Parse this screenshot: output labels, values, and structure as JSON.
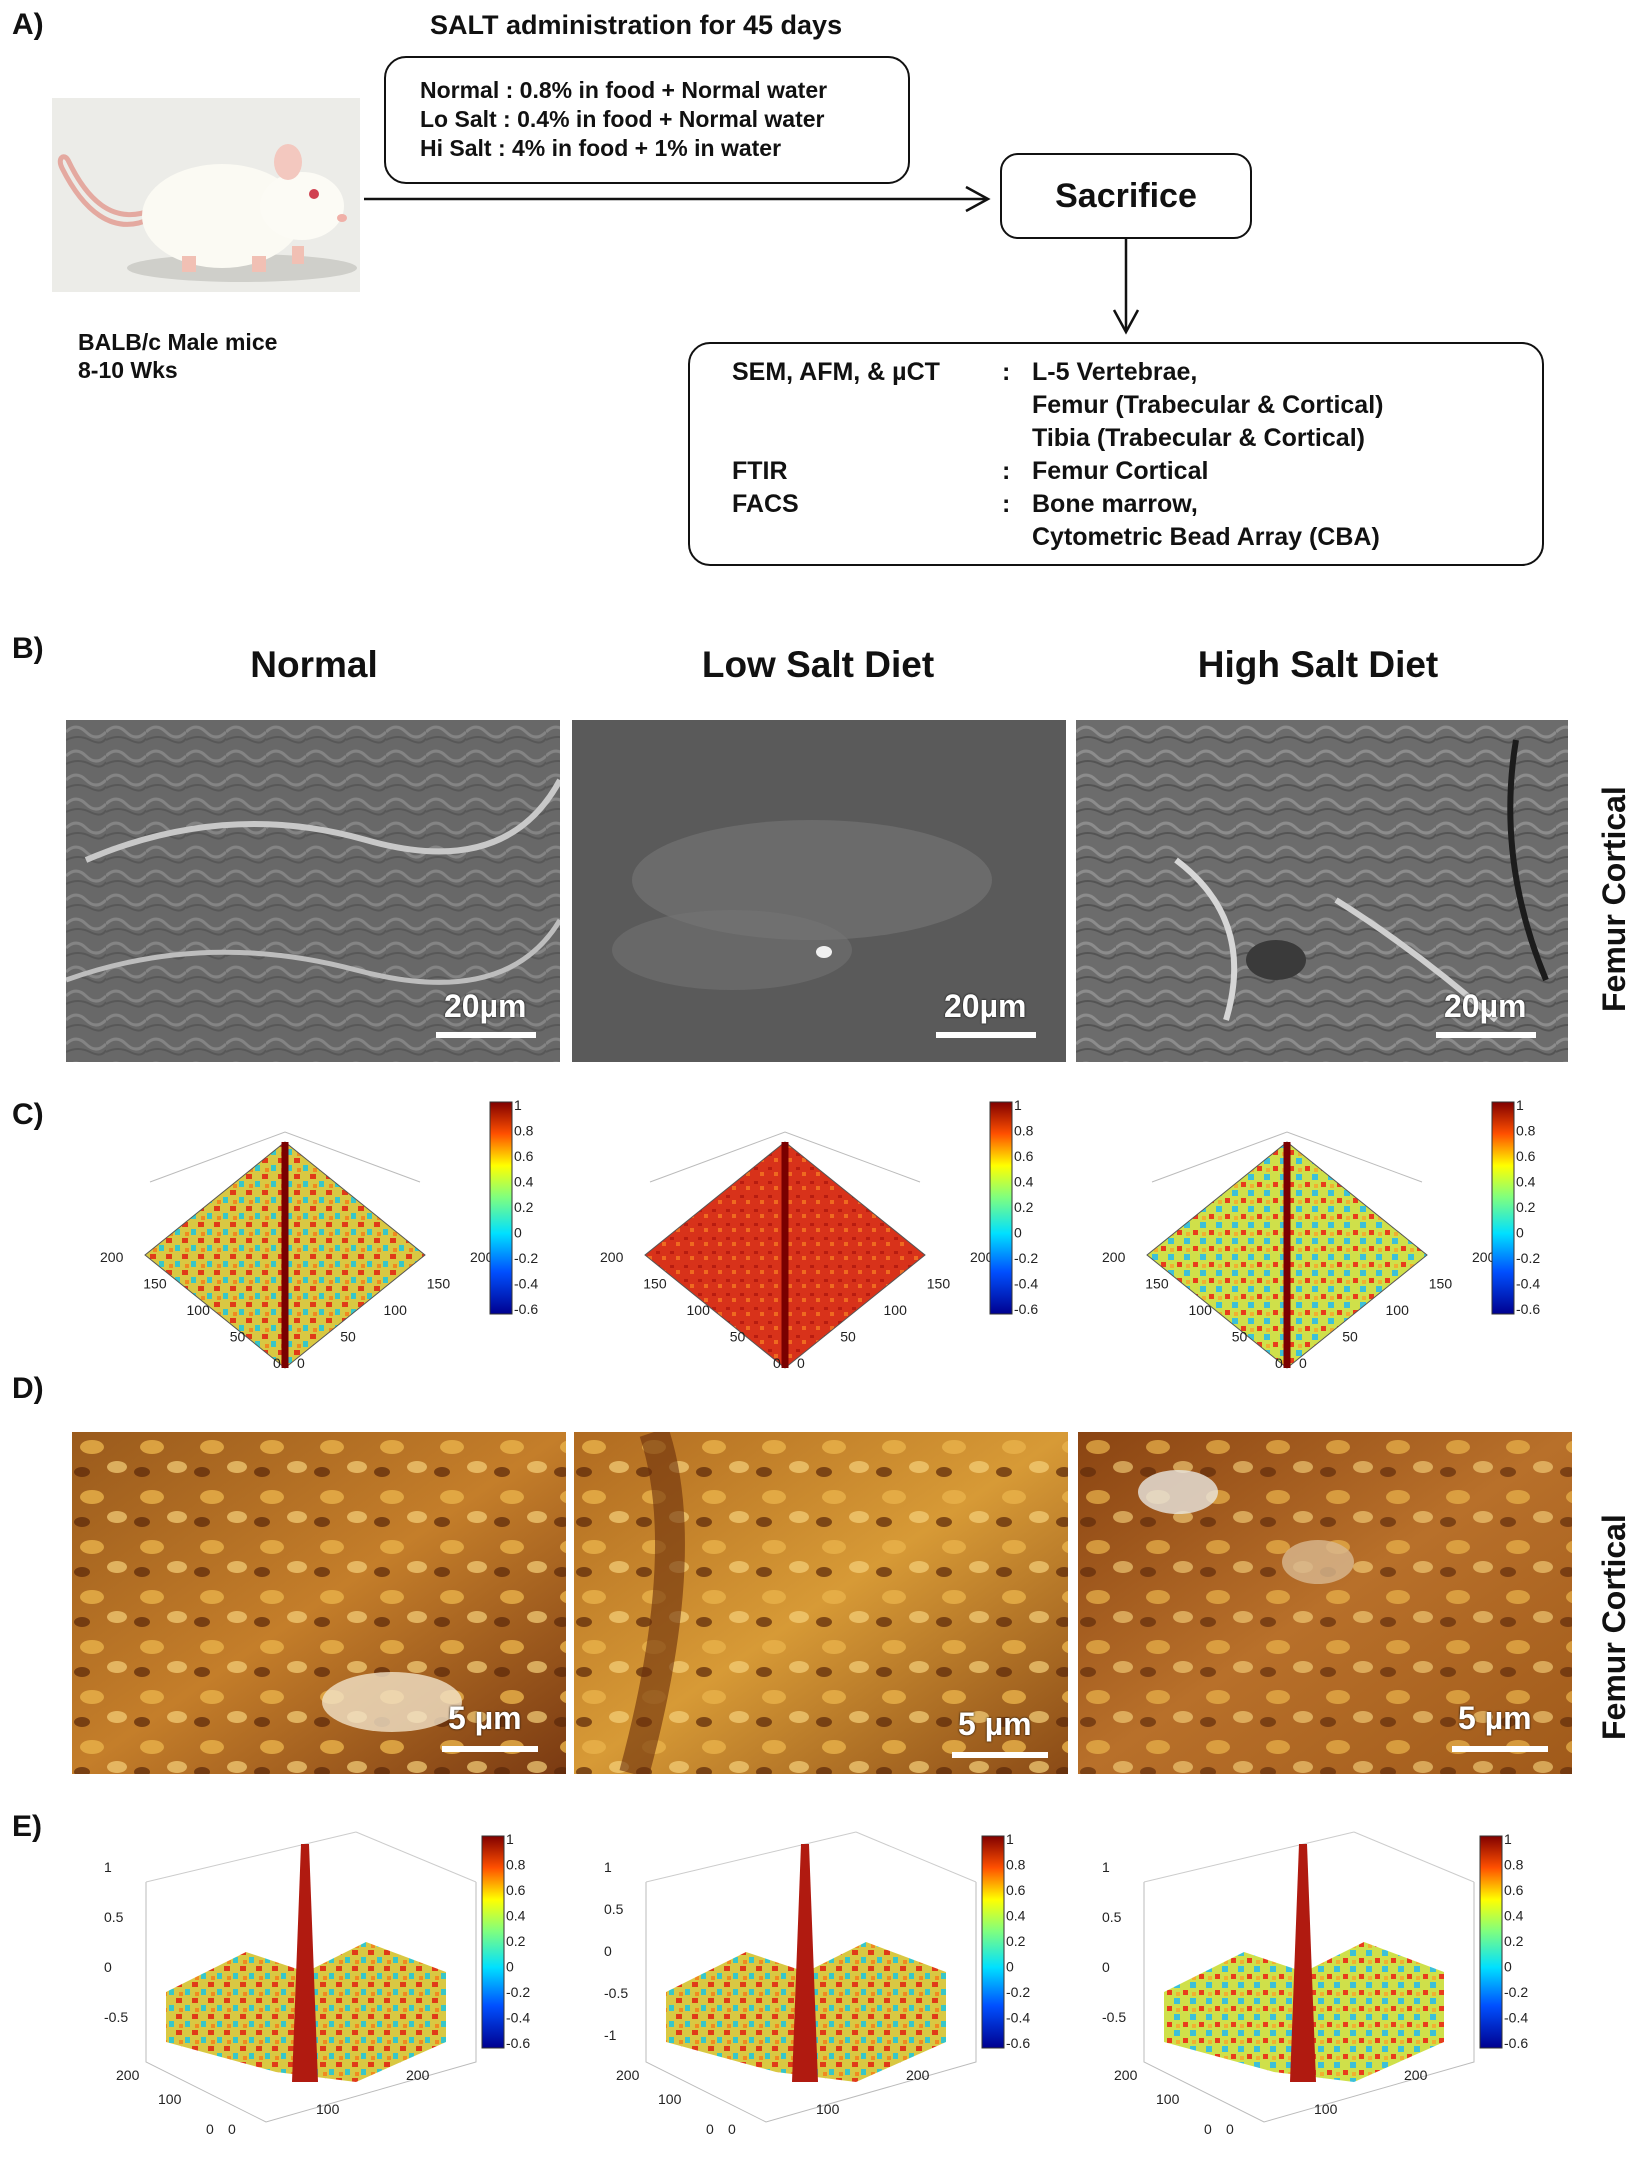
{
  "panel_a": {
    "letter": "A)",
    "top_title": "SALT administration  for 45 days",
    "diet_lines": [
      "Normal :  0.8% in food + Normal water",
      "Lo Salt :  0.4% in food + Normal water",
      "Hi Salt  :  4% in food + 1% in water"
    ],
    "mouse_label_1": "BALB/c Male mice",
    "mouse_label_2": "8-10  Wks",
    "sacrifice": "Sacrifice",
    "analysis": [
      {
        "method": "SEM, AFM, & µCT",
        "sep": ":",
        "target": "L-5 Vertebrae,"
      },
      {
        "method": "",
        "sep": "",
        "target": "Femur (Trabecular & Cortical)"
      },
      {
        "method": "",
        "sep": "",
        "target": "Tibia  (Trabecular & Cortical)"
      },
      {
        "method": "FTIR",
        "sep": ":",
        "target": "Femur Cortical"
      },
      {
        "method": "FACS",
        "sep": ":",
        "target": "Bone marrow,"
      },
      {
        "method": "",
        "sep": "",
        "target": "Cytometric Bead Array (CBA)"
      }
    ]
  },
  "panel_b": {
    "letter": "B)",
    "columns": [
      "Normal",
      "Low Salt Diet",
      "High Salt Diet"
    ],
    "scale": "20µm",
    "side_label": "Femur Cortical"
  },
  "panel_c": {
    "letter": "C)",
    "colorbar_ticks": [
      "1",
      "0.8",
      "0.6",
      "0.4",
      "0.2",
      "0",
      "-0.2",
      "-0.4",
      "-0.6"
    ],
    "axis_ticks": [
      "200",
      "150",
      "100",
      "50",
      "0"
    ]
  },
  "panel_d": {
    "letter": "D)",
    "scale": "5 µm",
    "side_label": "Femur Cortical"
  },
  "panel_e": {
    "letter": "E)",
    "colorbar_ticks": [
      "1",
      "0.8",
      "0.6",
      "0.4",
      "0.2",
      "0",
      "-0.2",
      "-0.4",
      "-0.6"
    ],
    "z_ticks": [
      "1",
      "0.5",
      "0",
      "-0.5"
    ],
    "z_ticks_mid": [
      "1",
      "0.5",
      "0",
      "-0.5",
      "-1"
    ],
    "base_ticks": [
      "200",
      "100",
      "0",
      "0",
      "100",
      "200"
    ]
  },
  "colors": {
    "sem_gray": "#6e6e6e",
    "afm_brown": "#8a4b16",
    "afm_gold": "#d89a32",
    "jet_red": "#c41a10",
    "jet_yellow": "#ead23a",
    "jet_cyan": "#28c4d8",
    "jet_blue": "#0b1e9c"
  }
}
